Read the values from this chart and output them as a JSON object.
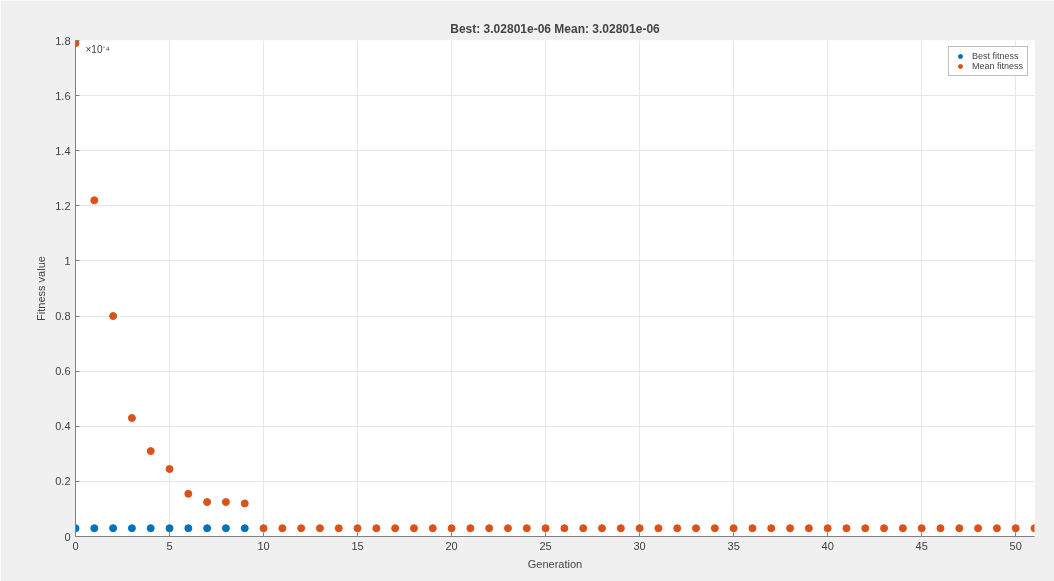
{
  "chart_data": {
    "type": "scatter",
    "title": "Best: 3.02801e-06 Mean: 3.02801e-06",
    "xlabel": "Generation",
    "ylabel": "Fitness value",
    "annotations": [
      "×10⁻⁴"
    ],
    "x": [
      0,
      1,
      2,
      3,
      4,
      5,
      6,
      7,
      8,
      9,
      10,
      11,
      12,
      13,
      14,
      15,
      16,
      17,
      18,
      19,
      20,
      21,
      22,
      23,
      24,
      25,
      26,
      27,
      28,
      29,
      30,
      31,
      32,
      33,
      34,
      35,
      36,
      37,
      38,
      39,
      40,
      41,
      42,
      43,
      44,
      45,
      46,
      47,
      48,
      49,
      50,
      51
    ],
    "series": [
      {
        "name": "Best fitness",
        "color": "#0072bd",
        "values": [
          0.03,
          0.03,
          0.03,
          0.03,
          0.03,
          0.03,
          0.03,
          0.03,
          0.03,
          0.03,
          null,
          null,
          null,
          null,
          null,
          null,
          null,
          null,
          null,
          null,
          null,
          null,
          null,
          null,
          null,
          null,
          null,
          null,
          null,
          null,
          null,
          null,
          null,
          null,
          null,
          null,
          null,
          null,
          null,
          null,
          null,
          null,
          null,
          null,
          null,
          null,
          null,
          null,
          null,
          null,
          null,
          null
        ]
      },
      {
        "name": "Mean fitness",
        "color": "#d95319",
        "values": [
          1.79,
          1.22,
          0.8,
          0.43,
          0.31,
          0.245,
          0.155,
          0.125,
          0.125,
          0.12,
          0.03,
          0.03,
          0.03,
          0.03,
          0.03,
          0.03,
          0.03,
          0.03,
          0.03,
          0.03,
          0.03,
          0.03,
          0.03,
          0.03,
          0.03,
          0.03,
          0.03,
          0.03,
          0.03,
          0.03,
          0.03,
          0.03,
          0.03,
          0.03,
          0.03,
          0.03,
          0.03,
          0.03,
          0.03,
          0.03,
          0.03,
          0.03,
          0.03,
          0.03,
          0.03,
          0.03,
          0.03,
          0.03,
          0.03,
          0.03,
          0.03,
          0.03
        ]
      }
    ],
    "xlim": [
      0,
      51
    ],
    "xticks": [
      0,
      5,
      10,
      15,
      20,
      25,
      30,
      35,
      40,
      45,
      50
    ],
    "ylim": [
      0,
      1.8
    ],
    "yticks": [
      0,
      0.2,
      0.4,
      0.6,
      0.8,
      1,
      1.2,
      1.4,
      1.6,
      1.8
    ],
    "grid": true,
    "legend": "top right",
    "marker": "circle"
  }
}
